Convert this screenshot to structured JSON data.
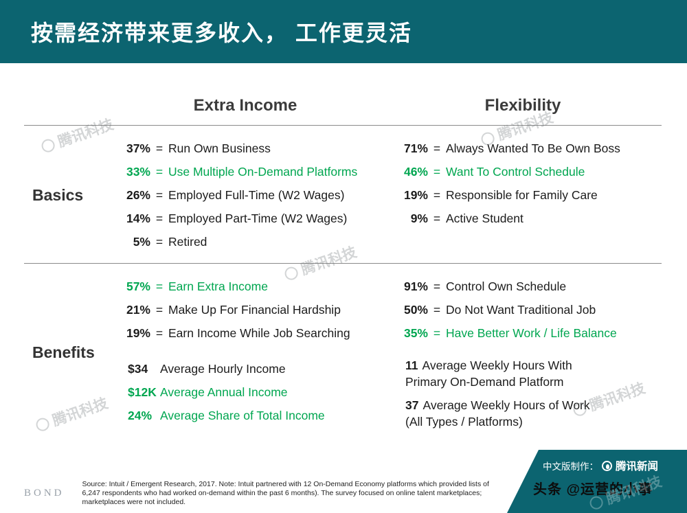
{
  "colors": {
    "teal": "#0c6470",
    "green": "#00a650",
    "text_dark": "#1c1c1c",
    "divider_gray": "#8a8a8a",
    "watermark_gray": "#6e7378"
  },
  "header": {
    "title": "按需经济带来更多收入， 工作更灵活"
  },
  "table": {
    "separator": "=",
    "col_headers": [
      "Extra Income",
      "Flexibility"
    ],
    "row_headers": [
      "Basics",
      "Benefits"
    ],
    "basics": {
      "extra_income": [
        {
          "value": "37%",
          "text": "Run Own Business",
          "color": "dark"
        },
        {
          "value": "33%",
          "text": "Use Multiple On-Demand Platforms",
          "color": "green"
        },
        {
          "value": "26%",
          "text": "Employed Full-Time (W2 Wages)",
          "color": "dark"
        },
        {
          "value": "14%",
          "text": "Employed Part-Time (W2 Wages)",
          "color": "dark"
        },
        {
          "value": "5%",
          "text": "Retired",
          "color": "dark"
        }
      ],
      "flexibility": [
        {
          "value": "71%",
          "text": "Always Wanted To Be Own Boss",
          "color": "dark"
        },
        {
          "value": "46%",
          "text": "Want To Control Schedule",
          "color": "green"
        },
        {
          "value": "19%",
          "text": "Responsible for Family Care",
          "color": "dark"
        },
        {
          "value": "9%",
          "text": "Active Student",
          "color": "dark"
        }
      ]
    },
    "benefits": {
      "extra_income_top": [
        {
          "value": "57%",
          "text": "Earn Extra Income",
          "color": "green"
        },
        {
          "value": "21%",
          "text": "Make Up For Financial Hardship",
          "color": "dark"
        },
        {
          "value": "19%",
          "text": "Earn Income While Job Searching",
          "color": "dark"
        }
      ],
      "extra_income_bottom": [
        {
          "value": "$34",
          "text": "Average Hourly Income",
          "color": "dark"
        },
        {
          "value": "$12K",
          "text": "Average Annual Income",
          "color": "green"
        },
        {
          "value": "24%",
          "text": "Average Share of Total Income",
          "color": "green"
        }
      ],
      "flexibility_top": [
        {
          "value": "91%",
          "text": "Control Own Schedule",
          "color": "dark"
        },
        {
          "value": "50%",
          "text": "Do Not Want Traditional Job",
          "color": "dark"
        },
        {
          "value": "35%",
          "text": "Have Better Work / Life Balance",
          "color": "green"
        }
      ],
      "flexibility_bottom": [
        {
          "value": "11",
          "line1": "Average Weekly Hours With",
          "line2": "Primary On-Demand Platform",
          "color": "green"
        },
        {
          "value": "37",
          "line1": "Average Weekly Hours of Work",
          "line2": "(All Types / Platforms)",
          "color": "dark"
        }
      ]
    }
  },
  "footer": {
    "logo": "BOND",
    "source_lines": [
      "Source: Intuit / Emergent Research, 2017. Note: Intuit partnered with 12 On-Demand Economy platforms which provided lists of",
      "6,247 respondents who had worked on-demand within the past 6 months). The survey focused on online talent marketplaces;",
      "marketplaces were not included."
    ]
  },
  "ribbon": {
    "credit_prefix": "中文版制作：",
    "credit_brand": "腾讯新闻",
    "byline": "头条 @运营的小事"
  },
  "watermark": {
    "text": "腾讯科技",
    "icon": "tencent-circle-logo"
  }
}
